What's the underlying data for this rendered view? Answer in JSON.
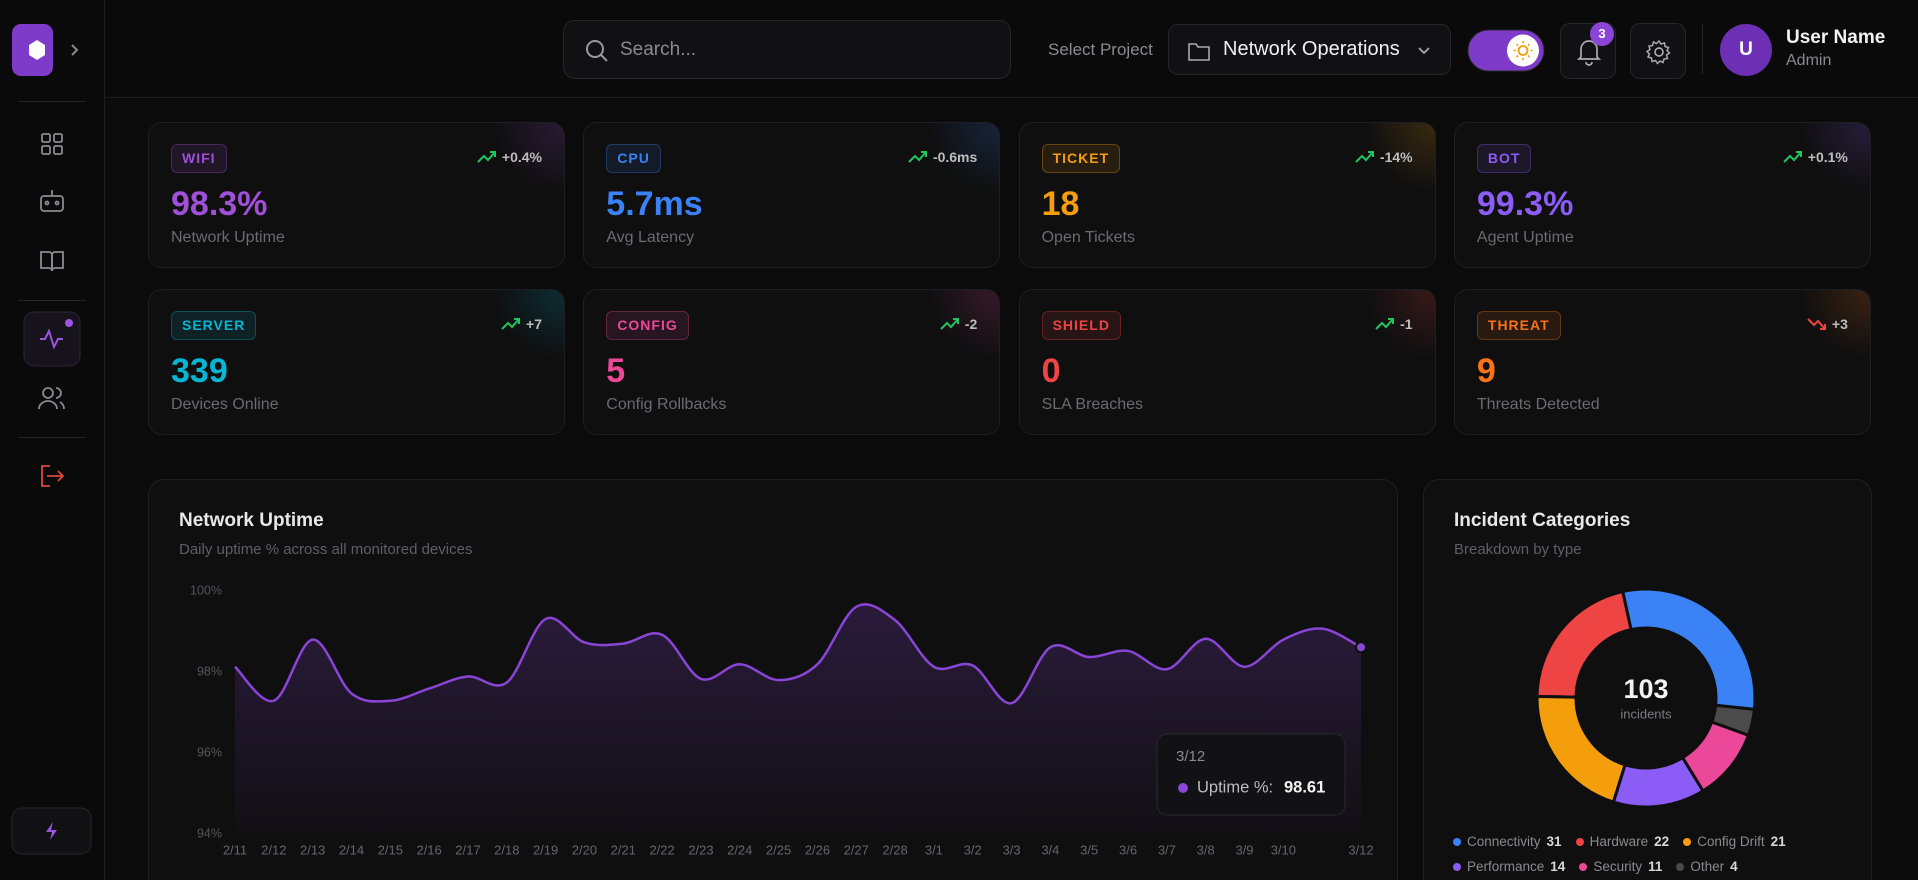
{
  "header": {
    "search_placeholder": "Search...",
    "project_label": "Select Project",
    "project": "Network Operations",
    "notifications": "3",
    "avatar": "U",
    "user_name": "User Name",
    "user_role": "Admin"
  },
  "kpis": [
    {
      "tag": "WIFI",
      "value": "98.3%",
      "label": "Network Uptime",
      "delta": "+0.4%",
      "trend": "up",
      "color": "#a04fd8"
    },
    {
      "tag": "CPU",
      "value": "5.7ms",
      "label": "Avg Latency",
      "delta": "-0.6ms",
      "trend": "up",
      "color": "#3b82f6"
    },
    {
      "tag": "TICKET",
      "value": "18",
      "label": "Open Tickets",
      "delta": "-14%",
      "trend": "up",
      "color": "#f59e0b"
    },
    {
      "tag": "BOT",
      "value": "99.3%",
      "label": "Agent Uptime",
      "delta": "+0.1%",
      "trend": "up",
      "color": "#8b5cf6"
    },
    {
      "tag": "SERVER",
      "value": "339",
      "label": "Devices Online",
      "delta": "+7",
      "trend": "up",
      "color": "#06b6d4"
    },
    {
      "tag": "CONFIG",
      "value": "5",
      "label": "Config Rollbacks",
      "delta": "-2",
      "trend": "up",
      "color": "#ec4899"
    },
    {
      "tag": "SHIELD",
      "value": "0",
      "label": "SLA Breaches",
      "delta": "-1",
      "trend": "up",
      "color": "#ef4444"
    },
    {
      "tag": "THREAT",
      "value": "9",
      "label": "Threats Detected",
      "delta": "+3",
      "trend": "down",
      "color": "#f97316"
    }
  ],
  "chart_data": [
    {
      "type": "line",
      "title": "Network Uptime",
      "subtitle": "Daily uptime % across all monitored devices",
      "categories": [
        "2/11",
        "2/12",
        "2/13",
        "2/14",
        "2/15",
        "2/16",
        "2/17",
        "2/18",
        "2/19",
        "2/20",
        "2/21",
        "2/22",
        "2/23",
        "2/24",
        "2/25",
        "2/26",
        "2/27",
        "2/28",
        "3/1",
        "3/2",
        "3/3",
        "3/4",
        "3/5",
        "3/6",
        "3/7",
        "3/8",
        "3/9",
        "3/10",
        null,
        "3/12"
      ],
      "values": [
        98.13,
        97.29,
        98.8,
        97.47,
        97.29,
        97.59,
        97.89,
        97.74,
        99.31,
        98.73,
        98.7,
        98.92,
        97.83,
        98.19,
        97.8,
        98.19,
        99.61,
        99.28,
        98.13,
        98.16,
        97.23,
        98.61,
        98.37,
        98.52,
        98.07,
        98.82,
        98.13,
        98.8,
        99.07,
        98.61
      ],
      "color": "#8b45d6",
      "ylim": [
        94,
        100
      ],
      "yticks": [
        {
          "value": 94,
          "label": "94%"
        },
        {
          "value": 96,
          "label": "96%"
        },
        {
          "value": 98,
          "label": "98%"
        },
        {
          "value": 100,
          "label": "100%"
        }
      ],
      "grid": false,
      "tooltip_label": "Uptime %:"
    },
    {
      "type": "donut",
      "title": "Incident Categories",
      "subtitle": "Breakdown by type",
      "categories": [
        "Connectivity",
        "Hardware",
        "Config Drift",
        "Performance",
        "Security",
        "Other"
      ],
      "values": [
        31,
        22,
        21,
        14,
        11,
        4
      ],
      "colors": [
        "#3b82f6",
        "#ef4444",
        "#f59e0b",
        "#8b5cf6",
        "#ec4899",
        "#4b4b4b"
      ],
      "total": 103,
      "center_label": "incidents"
    }
  ]
}
